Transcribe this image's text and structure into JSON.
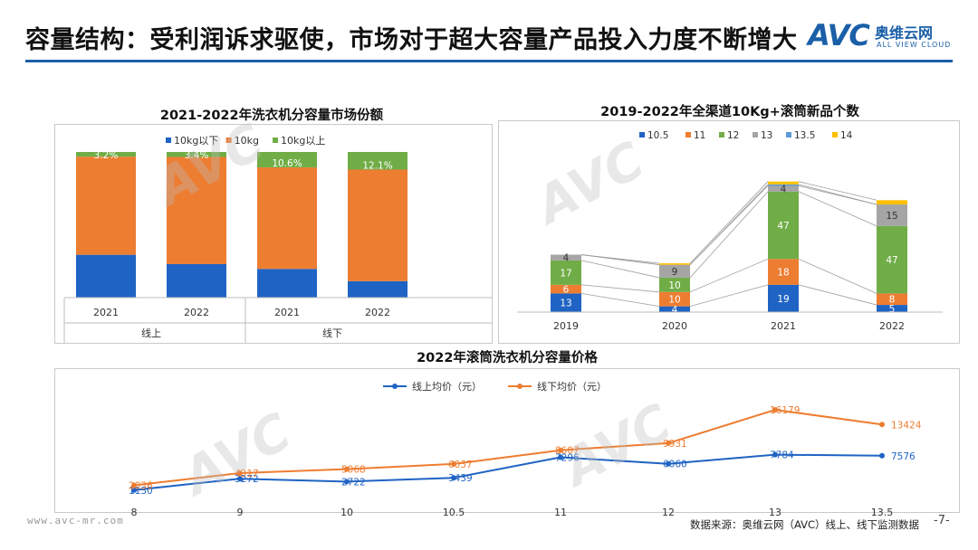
{
  "header": {
    "title": "容量结构：受利润诉求驱使，市场对于超大容量产品投入力度不断增大",
    "logo_mark": "AVC",
    "logo_cn": "奥维云网",
    "logo_en": "ALL VIEW CLOUD"
  },
  "colors": {
    "blue": "#1f63c4",
    "orange": "#ed7d31",
    "green": "#70ad47",
    "gray": "#a5a5a5",
    "lightblue": "#5b9bd5",
    "yellow": "#ffc000",
    "accent": "#1a5fa8"
  },
  "footer": {
    "website": "www.avc-mr.com",
    "source": "数据来源：奥维云网（AVC）线上、线下监测数据",
    "page": "-7-"
  },
  "chart_data": [
    {
      "type": "bar",
      "stacked": "percent",
      "title": "2021-2022年洗衣机分容量市场份额",
      "categories": [
        "2021",
        "2022",
        "2021",
        "2022"
      ],
      "groups": [
        {
          "label": "线上",
          "categories": [
            "2021",
            "2022"
          ]
        },
        {
          "label": "线下",
          "categories": [
            "2021",
            "2022"
          ]
        }
      ],
      "series": [
        {
          "name": "10kg以下",
          "color": "#1f63c4",
          "values": [
            29.4,
            23.0,
            19.7,
            11.3
          ]
        },
        {
          "name": "10kg",
          "color": "#ed7d31",
          "values": [
            67.4,
            73.6,
            69.7,
            76.6
          ]
        },
        {
          "name": "10kg以上",
          "color": "#70ad47",
          "values": [
            3.2,
            3.4,
            10.6,
            12.1
          ]
        }
      ],
      "data_labels": [
        "3.2%",
        "3.4%",
        "10.6%",
        "12.1%"
      ],
      "legend_position": "top"
    },
    {
      "type": "bar",
      "stacked": "absolute",
      "title": "2019-2022年全渠道10Kg+滚筒新品个数",
      "categories": [
        "2019",
        "2020",
        "2021",
        "2022"
      ],
      "series": [
        {
          "name": "10.5",
          "color": "#1f63c4",
          "values": [
            13,
            4,
            19,
            5
          ]
        },
        {
          "name": "11",
          "color": "#ed7d31",
          "values": [
            6,
            10,
            18,
            8
          ]
        },
        {
          "name": "12",
          "color": "#70ad47",
          "values": [
            17,
            10,
            47,
            47
          ]
        },
        {
          "name": "13",
          "color": "#a5a5a5",
          "values": [
            4,
            9,
            4,
            15
          ]
        },
        {
          "name": "13.5",
          "color": "#5b9bd5",
          "values": [
            0,
            0,
            1,
            0
          ]
        },
        {
          "name": "14",
          "color": "#ffc000",
          "values": [
            0,
            1,
            2,
            3
          ]
        }
      ],
      "data_labels": [
        [
          "13",
          "6",
          "17",
          "4"
        ],
        [
          "4",
          "10",
          "10",
          "9"
        ],
        [
          "19",
          "18",
          "47",
          "4"
        ],
        [
          "5",
          "8",
          "47",
          "15"
        ]
      ],
      "legend_position": "top",
      "series_lines": true
    },
    {
      "type": "line",
      "title": "2022年滚筒洗衣机分容量价格",
      "categories": [
        "8",
        "9",
        "10",
        "10.5",
        "11",
        "12",
        "13",
        "13.5"
      ],
      "series": [
        {
          "name": "线上均价（元）",
          "color": "#1f63c4",
          "values": [
            1130,
            3272,
            2722,
            3439,
            7296,
            6060,
            7784,
            7576
          ]
        },
        {
          "name": "线下均价（元）",
          "color": "#ed7d31",
          "values": [
            2036,
            4317,
            5068,
            6037,
            8607,
            9931,
            16179,
            13424
          ]
        }
      ],
      "legend_position": "top"
    }
  ]
}
